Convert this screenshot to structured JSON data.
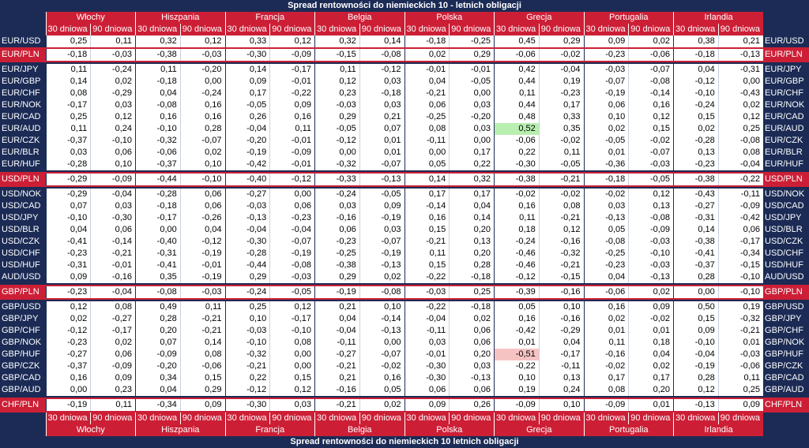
{
  "title": "Spread rentowności do niemieckich 10 - letnich obligacji",
  "footer_title": "Spread rentowności do niemieckich 10 letnich obligacji",
  "periods": [
    "30 dniowa",
    "90 dniowa"
  ],
  "countries": [
    "Włochy",
    "Hiszpania",
    "Francja",
    "Belgia",
    "Polska",
    "Grecja",
    "Portugalia",
    "Irlandia"
  ],
  "highlight_colors": {
    "positive": "#b9efb0",
    "negative": "#f6c3c3",
    "pln_row": "#cc1f36",
    "background": "#1b2b55"
  },
  "groups": [
    {
      "rows": [
        {
          "label": "EUR/USD",
          "pln": false,
          "values": [
            "0,25",
            "0,11",
            "0,32",
            "0,12",
            "0,33",
            "0,12",
            "0,32",
            "0,14",
            "-0,18",
            "-0,25",
            "0,45",
            "0,29",
            "0,09",
            "0,02",
            "0,38",
            "0,21"
          ]
        },
        {
          "label": "EUR/PLN",
          "pln": true,
          "values": [
            "-0,18",
            "-0,03",
            "-0,38",
            "-0,03",
            "-0,30",
            "-0,09",
            "-0,15",
            "-0,08",
            "0,02",
            "0,29",
            "-0,06",
            "-0,02",
            "-0,23",
            "-0,06",
            "-0,18",
            "-0,13"
          ]
        }
      ]
    },
    {
      "rows": [
        {
          "label": "EUR/JPY",
          "pln": false,
          "values": [
            "0,11",
            "-0,24",
            "0,11",
            "-0,20",
            "0,14",
            "-0,17",
            "0,11",
            "-0,12",
            "-0,01",
            "-0,01",
            "0,42",
            "-0,04",
            "-0,03",
            "-0,07",
            "0,04",
            "-0,31"
          ]
        },
        {
          "label": "EUR/GBP",
          "pln": false,
          "values": [
            "0,14",
            "0,02",
            "-0,18",
            "0,00",
            "0,09",
            "-0,01",
            "0,12",
            "0,03",
            "0,04",
            "-0,05",
            "0,44",
            "0,19",
            "-0,07",
            "-0,08",
            "-0,12",
            "0,00"
          ]
        },
        {
          "label": "EUR/CHF",
          "pln": false,
          "values": [
            "0,08",
            "-0,29",
            "0,04",
            "-0,24",
            "0,17",
            "-0,22",
            "0,23",
            "-0,18",
            "-0,21",
            "0,00",
            "0,11",
            "-0,23",
            "-0,19",
            "-0,14",
            "-0,10",
            "-0,43"
          ]
        },
        {
          "label": "EUR/NOK",
          "pln": false,
          "values": [
            "-0,17",
            "0,03",
            "-0,08",
            "0,16",
            "-0,05",
            "0,09",
            "-0,03",
            "0,03",
            "0,06",
            "0,03",
            "0,44",
            "0,17",
            "0,06",
            "0,16",
            "-0,24",
            "0,02"
          ]
        },
        {
          "label": "EUR/CAD",
          "pln": false,
          "values": [
            "0,25",
            "0,12",
            "0,16",
            "0,16",
            "0,26",
            "0,16",
            "0,29",
            "0,21",
            "-0,25",
            "-0,20",
            "0,48",
            "0,33",
            "0,10",
            "0,12",
            "0,15",
            "0,12"
          ]
        },
        {
          "label": "EUR/AUD",
          "pln": false,
          "values": [
            "0,11",
            "0,24",
            "-0,10",
            "0,28",
            "-0,04",
            "0,11",
            "-0,05",
            "0,07",
            "0,08",
            "0,03",
            "0,52",
            "0,35",
            "0,02",
            "0,15",
            "0,02",
            "0,25"
          ],
          "highlight": [
            10
          ]
        },
        {
          "label": "EUR/CZK",
          "pln": false,
          "values": [
            "-0,37",
            "-0,10",
            "-0,32",
            "-0,07",
            "-0,20",
            "-0,01",
            "-0,12",
            "0,01",
            "-0,11",
            "0,00",
            "-0,06",
            "-0,02",
            "-0,05",
            "-0,02",
            "-0,28",
            "-0,08"
          ]
        },
        {
          "label": "EUR/BLR",
          "pln": false,
          "values": [
            "0,03",
            "0,06",
            "-0,06",
            "0,02",
            "-0,19",
            "-0,09",
            "0,00",
            "0,01",
            "0,00",
            "0,17",
            "0,22",
            "0,11",
            "0,01",
            "-0,07",
            "0,13",
            "0,08"
          ]
        },
        {
          "label": "EUR/HUF",
          "pln": false,
          "values": [
            "-0,28",
            "0,10",
            "-0,37",
            "0,10",
            "-0,42",
            "-0,01",
            "-0,32",
            "-0,07",
            "0,05",
            "0,22",
            "-0,30",
            "-0,05",
            "-0,36",
            "-0,03",
            "-0,23",
            "-0,04"
          ]
        }
      ]
    },
    {
      "rows": [
        {
          "label": "USD/PLN",
          "pln": true,
          "values": [
            "-0,29",
            "-0,09",
            "-0,44",
            "-0,10",
            "-0,40",
            "-0,12",
            "-0,33",
            "-0,13",
            "0,14",
            "0,32",
            "-0,38",
            "-0,21",
            "-0,18",
            "-0,05",
            "-0,38",
            "-0,22"
          ]
        }
      ]
    },
    {
      "rows": [
        {
          "label": "USD/NOK",
          "pln": false,
          "values": [
            "-0,29",
            "-0,04",
            "-0,28",
            "0,06",
            "-0,27",
            "0,00",
            "-0,24",
            "-0,05",
            "0,17",
            "0,17",
            "-0,02",
            "-0,02",
            "-0,02",
            "0,12",
            "-0,43",
            "-0,11"
          ]
        },
        {
          "label": "USD/CAD",
          "pln": false,
          "values": [
            "0,07",
            "0,03",
            "-0,18",
            "0,06",
            "-0,03",
            "0,06",
            "0,03",
            "0,09",
            "-0,14",
            "0,04",
            "0,16",
            "0,08",
            "0,03",
            "0,13",
            "-0,27",
            "-0,09"
          ]
        },
        {
          "label": "USD/JPY",
          "pln": false,
          "values": [
            "-0,10",
            "-0,30",
            "-0,17",
            "-0,26",
            "-0,13",
            "-0,23",
            "-0,16",
            "-0,19",
            "0,16",
            "0,14",
            "0,11",
            "-0,21",
            "-0,13",
            "-0,08",
            "-0,31",
            "-0,42"
          ]
        },
        {
          "label": "USD/BLR",
          "pln": false,
          "values": [
            "0,04",
            "0,06",
            "0,00",
            "0,04",
            "-0,04",
            "-0,04",
            "0,06",
            "0,03",
            "0,15",
            "0,20",
            "0,18",
            "0,12",
            "0,05",
            "-0,09",
            "0,14",
            "0,06"
          ]
        },
        {
          "label": "USD/CZK",
          "pln": false,
          "values": [
            "-0,41",
            "-0,14",
            "-0,40",
            "-0,12",
            "-0,30",
            "-0,07",
            "-0,23",
            "-0,07",
            "-0,21",
            "0,13",
            "-0,24",
            "-0,16",
            "-0,08",
            "-0,03",
            "-0,38",
            "-0,17"
          ]
        },
        {
          "label": "USD/CHF",
          "pln": false,
          "values": [
            "-0,23",
            "-0,21",
            "-0,31",
            "-0,19",
            "-0,28",
            "-0,19",
            "-0,25",
            "-0,19",
            "0,11",
            "0,20",
            "-0,46",
            "-0,32",
            "-0,25",
            "-0,10",
            "-0,41",
            "-0,34"
          ]
        },
        {
          "label": "USD/HUF",
          "pln": false,
          "values": [
            "-0,31",
            "-0,01",
            "-0,41",
            "-0,01",
            "-0,44",
            "-0,08",
            "-0,38",
            "-0,13",
            "0,15",
            "0,28",
            "-0,46",
            "-0,21",
            "-0,23",
            "-0,03",
            "-0,37",
            "-0,15"
          ]
        },
        {
          "label": "AUD/USD",
          "pln": false,
          "values": [
            "0,09",
            "-0,16",
            "0,35",
            "-0,19",
            "0,29",
            "-0,03",
            "0,29",
            "0,02",
            "-0,22",
            "-0,18",
            "-0,12",
            "-0,15",
            "0,04",
            "-0,13",
            "0,28",
            "-0,10"
          ]
        }
      ]
    },
    {
      "rows": [
        {
          "label": "GBP/PLN",
          "pln": true,
          "values": [
            "-0,23",
            "-0,04",
            "-0,08",
            "-0,03",
            "-0,24",
            "-0,05",
            "-0,19",
            "-0,08",
            "-0,03",
            "0,25",
            "-0,39",
            "-0,16",
            "-0,06",
            "0,02",
            "0,00",
            "-0,10"
          ]
        }
      ]
    },
    {
      "rows": [
        {
          "label": "GBP/USD",
          "pln": false,
          "values": [
            "0,12",
            "0,08",
            "0,49",
            "0,11",
            "0,25",
            "0,12",
            "0,21",
            "0,10",
            "-0,22",
            "-0,18",
            "0,05",
            "0,10",
            "0,16",
            "0,09",
            "0,50",
            "0,19"
          ]
        },
        {
          "label": "GBP/JPY",
          "pln": false,
          "values": [
            "0,02",
            "-0,27",
            "0,28",
            "-0,21",
            "0,10",
            "-0,17",
            "0,04",
            "-0,14",
            "-0,04",
            "0,02",
            "0,16",
            "-0,16",
            "0,02",
            "-0,02",
            "0,15",
            "-0,32"
          ]
        },
        {
          "label": "GBP/CHF",
          "pln": false,
          "values": [
            "-0,12",
            "-0,17",
            "0,20",
            "-0,21",
            "-0,03",
            "-0,10",
            "-0,04",
            "-0,13",
            "-0,11",
            "0,06",
            "-0,42",
            "-0,29",
            "0,01",
            "0,01",
            "0,09",
            "-0,21"
          ]
        },
        {
          "label": "GBP/NOK",
          "pln": false,
          "values": [
            "-0,23",
            "0,02",
            "0,07",
            "0,14",
            "-0,10",
            "0,08",
            "-0,11",
            "0,00",
            "0,03",
            "0,06",
            "0,01",
            "0,04",
            "0,11",
            "0,18",
            "-0,10",
            "0,01"
          ]
        },
        {
          "label": "GBP/HUF",
          "pln": false,
          "values": [
            "-0,27",
            "0,06",
            "-0,09",
            "0,08",
            "-0,32",
            "0,00",
            "-0,27",
            "-0,07",
            "-0,01",
            "0,20",
            "-0,51",
            "-0,17",
            "-0,16",
            "0,04",
            "-0,04",
            "-0,03"
          ],
          "highlight_neg": [
            10
          ]
        },
        {
          "label": "GBP/CZK",
          "pln": false,
          "values": [
            "-0,37",
            "-0,09",
            "-0,20",
            "-0,06",
            "-0,21",
            "0,00",
            "-0,21",
            "-0,02",
            "-0,30",
            "0,03",
            "-0,22",
            "-0,11",
            "-0,02",
            "0,02",
            "-0,19",
            "-0,06"
          ]
        },
        {
          "label": "GBP/CAD",
          "pln": false,
          "values": [
            "0,16",
            "0,09",
            "0,34",
            "0,15",
            "0,22",
            "0,15",
            "0,21",
            "0,16",
            "-0,30",
            "-0,13",
            "0,10",
            "0,13",
            "0,17",
            "0,17",
            "0,28",
            "0,11"
          ]
        },
        {
          "label": "GBP/AUD",
          "pln": false,
          "values": [
            "0,00",
            "0,23",
            "0,04",
            "0,29",
            "-0,12",
            "0,12",
            "-0,16",
            "0,05",
            "0,06",
            "0,06",
            "0,19",
            "0,24",
            "0,08",
            "0,20",
            "0,12",
            "0,25"
          ]
        }
      ]
    },
    {
      "rows": [
        {
          "label": "CHF/PLN",
          "pln": true,
          "values": [
            "-0,19",
            "0,11",
            "-0,34",
            "0,09",
            "-0,30",
            "0,03",
            "-0,21",
            "0,02",
            "0,09",
            "0,26",
            "-0,09",
            "0,10",
            "-0,09",
            "0,01",
            "-0,13",
            "0,09"
          ]
        }
      ]
    }
  ]
}
